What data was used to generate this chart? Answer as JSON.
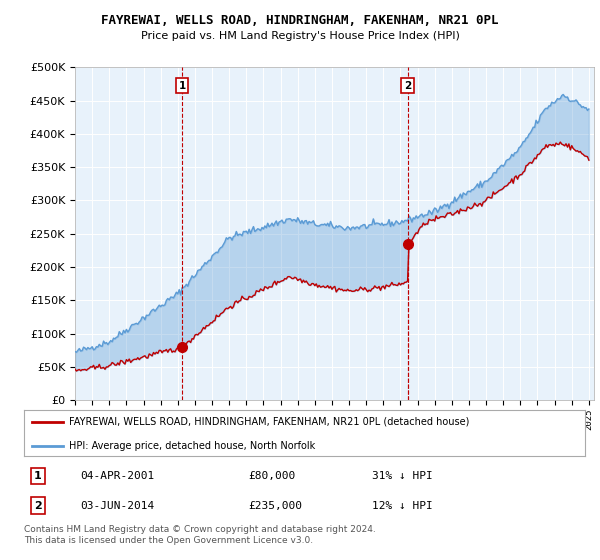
{
  "title": "FAYREWAI, WELLS ROAD, HINDRINGHAM, FAKENHAM, NR21 0PL",
  "subtitle": "Price paid vs. HM Land Registry's House Price Index (HPI)",
  "legend_line1": "FAYREWAI, WELLS ROAD, HINDRINGHAM, FAKENHAM, NR21 0PL (detached house)",
  "legend_line2": "HPI: Average price, detached house, North Norfolk",
  "transaction1_date": "04-APR-2001",
  "transaction1_price": "£80,000",
  "transaction1_hpi": "31% ↓ HPI",
  "transaction2_date": "03-JUN-2014",
  "transaction2_price": "£235,000",
  "transaction2_hpi": "12% ↓ HPI",
  "footer": "Contains HM Land Registry data © Crown copyright and database right 2024.\nThis data is licensed under the Open Government Licence v3.0.",
  "hpi_color": "#5b9bd5",
  "price_color": "#c00000",
  "fill_color": "#ddeeff",
  "background_color": "#ffffff",
  "grid_color": "#cccccc",
  "ylim": [
    0,
    500000
  ],
  "yticks": [
    0,
    50000,
    100000,
    150000,
    200000,
    250000,
    300000,
    350000,
    400000,
    450000,
    500000
  ],
  "transaction1_year": 2001.25,
  "transaction2_year": 2014.42,
  "transaction1_price_val": 80000,
  "transaction2_price_val": 235000
}
